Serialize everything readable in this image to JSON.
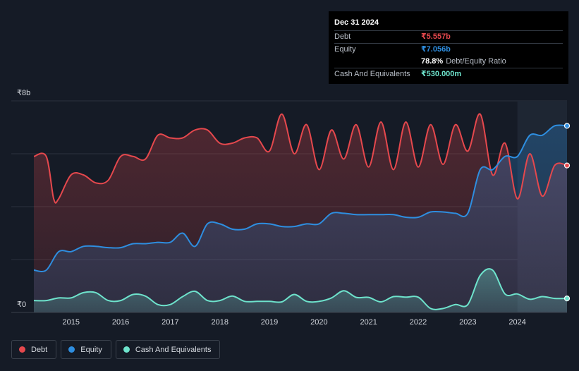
{
  "tooltip": {
    "date": "Dec 31 2024",
    "debt_label": "Debt",
    "debt_value": "₹5.557b",
    "equity_label": "Equity",
    "equity_value": "₹7.056b",
    "ratio_value": "78.8%",
    "ratio_label": "Debt/Equity Ratio",
    "cash_label": "Cash And Equivalents",
    "cash_value": "₹530.000m"
  },
  "legend": [
    {
      "label": "Debt",
      "color": "#e5484d"
    },
    {
      "label": "Equity",
      "color": "#2e8ee0"
    },
    {
      "label": "Cash And Equivalents",
      "color": "#6ee3cc"
    }
  ],
  "chart_data": {
    "type": "area",
    "y_top_label": "₹8b",
    "y_bottom_label": "₹0",
    "ylim": [
      0,
      8
    ],
    "y_unit": "₹b",
    "xlim": [
      2014.25,
      2025.0
    ],
    "x_ticks": [
      "2015",
      "2016",
      "2017",
      "2018",
      "2019",
      "2020",
      "2021",
      "2022",
      "2023",
      "2024"
    ],
    "grid": true,
    "legend_position": "bottom-left",
    "colors": {
      "debt": "#e5484d",
      "equity": "#2e8ee0",
      "cash": "#6ee3cc"
    },
    "series": [
      {
        "name": "Debt",
        "x": [
          2014.25,
          2014.5,
          2014.65,
          2014.75,
          2015.0,
          2015.25,
          2015.5,
          2015.75,
          2016.0,
          2016.25,
          2016.5,
          2016.75,
          2017.0,
          2017.25,
          2017.5,
          2017.75,
          2018.0,
          2018.25,
          2018.5,
          2018.75,
          2019.0,
          2019.25,
          2019.5,
          2019.75,
          2020.0,
          2020.25,
          2020.5,
          2020.75,
          2021.0,
          2021.25,
          2021.5,
          2021.75,
          2022.0,
          2022.25,
          2022.5,
          2022.75,
          2023.0,
          2023.25,
          2023.5,
          2023.75,
          2024.0,
          2024.25,
          2024.5,
          2024.75,
          2025.0
        ],
        "values": [
          5.9,
          5.9,
          4.3,
          4.3,
          5.2,
          5.2,
          4.9,
          5.0,
          5.9,
          5.9,
          5.8,
          6.7,
          6.6,
          6.6,
          6.9,
          6.9,
          6.4,
          6.4,
          6.6,
          6.6,
          6.1,
          7.5,
          6.0,
          7.1,
          5.4,
          6.9,
          5.8,
          7.1,
          5.5,
          7.2,
          5.4,
          7.2,
          5.5,
          7.1,
          5.6,
          7.1,
          6.1,
          7.5,
          5.2,
          6.4,
          4.3,
          6.0,
          4.4,
          5.557,
          5.557
        ]
      },
      {
        "name": "Equity",
        "x": [
          2014.25,
          2014.5,
          2014.75,
          2015.0,
          2015.25,
          2015.5,
          2015.75,
          2016.0,
          2016.25,
          2016.5,
          2016.75,
          2017.0,
          2017.25,
          2017.5,
          2017.75,
          2018.0,
          2018.25,
          2018.5,
          2018.75,
          2019.0,
          2019.25,
          2019.5,
          2019.75,
          2020.0,
          2020.25,
          2020.5,
          2020.75,
          2021.0,
          2021.25,
          2021.5,
          2021.75,
          2022.0,
          2022.25,
          2022.5,
          2022.75,
          2023.0,
          2023.25,
          2023.5,
          2023.75,
          2024.0,
          2024.25,
          2024.5,
          2024.75,
          2025.0
        ],
        "values": [
          1.6,
          1.6,
          2.3,
          2.3,
          2.5,
          2.5,
          2.45,
          2.45,
          2.6,
          2.6,
          2.65,
          2.65,
          3.0,
          2.5,
          3.35,
          3.35,
          3.15,
          3.15,
          3.35,
          3.35,
          3.25,
          3.25,
          3.35,
          3.35,
          3.75,
          3.75,
          3.7,
          3.7,
          3.7,
          3.7,
          3.6,
          3.6,
          3.8,
          3.8,
          3.75,
          3.75,
          5.4,
          5.4,
          5.9,
          5.9,
          6.7,
          6.7,
          7.056,
          7.056
        ]
      },
      {
        "name": "Cash And Equivalents",
        "x": [
          2014.25,
          2014.5,
          2014.75,
          2015.0,
          2015.25,
          2015.5,
          2015.75,
          2016.0,
          2016.25,
          2016.5,
          2016.75,
          2017.0,
          2017.25,
          2017.5,
          2017.75,
          2018.0,
          2018.25,
          2018.5,
          2018.75,
          2019.0,
          2019.25,
          2019.5,
          2019.75,
          2020.0,
          2020.25,
          2020.5,
          2020.75,
          2021.0,
          2021.25,
          2021.5,
          2021.75,
          2022.0,
          2022.25,
          2022.5,
          2022.75,
          2023.0,
          2023.25,
          2023.5,
          2023.75,
          2024.0,
          2024.25,
          2024.5,
          2024.75,
          2025.0
        ],
        "values": [
          0.45,
          0.45,
          0.55,
          0.55,
          0.75,
          0.75,
          0.45,
          0.45,
          0.68,
          0.62,
          0.3,
          0.3,
          0.6,
          0.8,
          0.45,
          0.45,
          0.62,
          0.42,
          0.42,
          0.42,
          0.4,
          0.68,
          0.42,
          0.42,
          0.55,
          0.82,
          0.57,
          0.57,
          0.4,
          0.6,
          0.58,
          0.58,
          0.15,
          0.15,
          0.3,
          0.3,
          1.4,
          1.6,
          0.7,
          0.7,
          0.5,
          0.6,
          0.53,
          0.53
        ]
      }
    ]
  }
}
